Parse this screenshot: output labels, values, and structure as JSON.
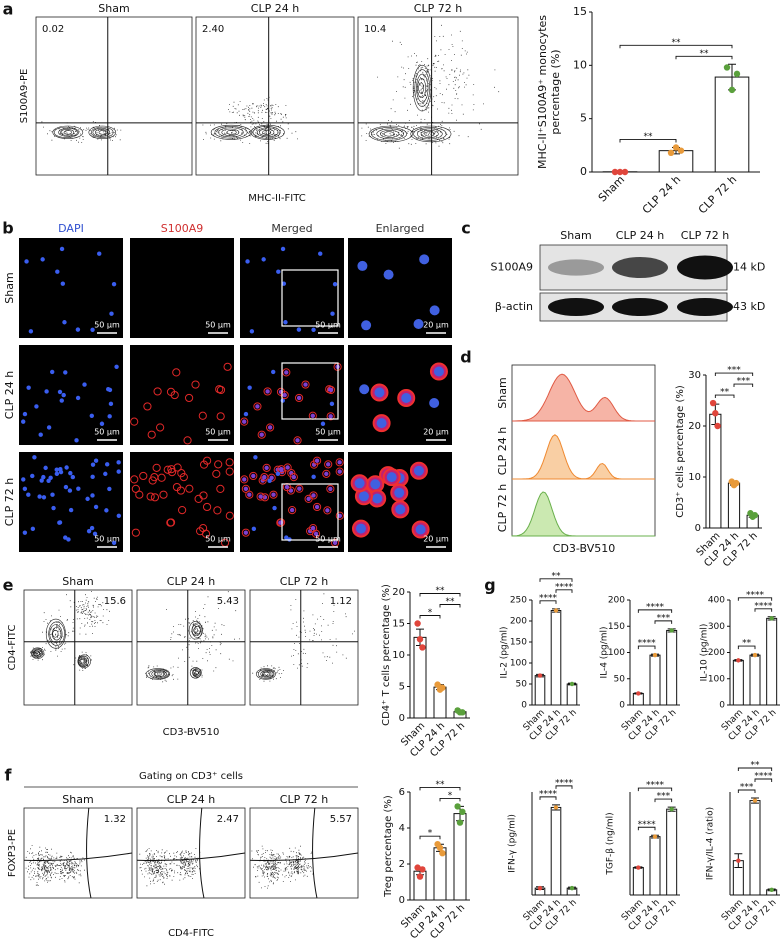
{
  "panels": [
    "a",
    "b",
    "c",
    "d",
    "e",
    "f",
    "g"
  ],
  "flow_a": {
    "ylabel": "S100A9-PE",
    "xlabel": "MHC-II-FITC",
    "plots": [
      {
        "title": "Sham",
        "percent": "0.02"
      },
      {
        "title": "CLP 24 h",
        "percent": "2.40"
      },
      {
        "title": "CLP 72 h",
        "percent": "10.4"
      }
    ]
  },
  "microscopy": {
    "columns": [
      "DAPI",
      "S100A9",
      "Merged",
      "Enlarged"
    ],
    "rows": [
      "Sham",
      "CLP 24 h",
      "CLP 72 h"
    ],
    "scale_bar": "50 μm",
    "scale_bar_enlarged": "20 μm"
  },
  "western": {
    "lanes": [
      "Sham",
      "CLP 24 h",
      "CLP 72 h"
    ],
    "bands": [
      {
        "label": "S100A9",
        "size": "14 kD"
      },
      {
        "label": "β-actin",
        "size": "43 kD"
      }
    ]
  },
  "histogram": {
    "rows": [
      "Sham",
      "CLP 24 h",
      "CLP 72 h"
    ],
    "xlabel": "CD3-BV510"
  },
  "flow_e": {
    "ylabel": "CD4-FITC",
    "xlabel": "CD3-BV510",
    "plots": [
      {
        "title": "Sham",
        "percent": "15.6"
      },
      {
        "title": "CLP 24 h",
        "percent": "5.43"
      },
      {
        "title": "CLP 72 h",
        "percent": "1.12"
      }
    ]
  },
  "flow_f": {
    "gating": "Gating on CD3⁺ cells",
    "ylabel": "FOXP3-PE",
    "xlabel": "CD4-FITC",
    "plots": [
      {
        "title": "Sham",
        "percent": "1.32"
      },
      {
        "title": "CLP 24 h",
        "percent": "2.47"
      },
      {
        "title": "CLP 72 h",
        "percent": "5.57"
      }
    ]
  },
  "chart_data": [
    {
      "type": "bar",
      "ylabel": [
        "MHC-II⁺S100A9⁺ monocytes",
        "percentage (%)"
      ],
      "categories": [
        "Sham",
        "CLP 24 h",
        "CLP 72 h"
      ],
      "values": [
        0.02,
        2.0,
        8.9
      ],
      "errors": [
        0.01,
        0.3,
        1.2
      ],
      "points": [
        [
          0,
          0,
          0
        ],
        [
          1.8,
          2.3,
          2.0
        ],
        [
          9.8,
          7.7,
          9.2
        ]
      ],
      "colors": [
        "#e0463c",
        "#e89a3a",
        "#5aa03c"
      ],
      "ylim": [
        0,
        15
      ],
      "yticks": [
        0,
        5,
        10,
        15
      ],
      "significance": [
        {
          "groups": [
            0,
            1
          ],
          "label": "**"
        },
        {
          "groups": [
            1,
            2
          ],
          "label": "**"
        },
        {
          "groups": [
            0,
            2
          ],
          "label": "**"
        }
      ]
    },
    {
      "type": "bar",
      "ylabel": "CD3⁺ cells percentage (%)",
      "categories": [
        "Sham",
        "CLP 24 h",
        "CLP 72 h"
      ],
      "values": [
        22.3,
        8.8,
        2.5
      ],
      "errors": [
        2.0,
        0.4,
        0.4
      ],
      "points": [
        [
          24.5,
          22.5,
          20
        ],
        [
          9.1,
          8.4,
          8.8
        ],
        [
          2.9,
          2.2,
          2.5
        ]
      ],
      "colors": [
        "#e0463c",
        "#e89a3a",
        "#5aa03c"
      ],
      "ylim": [
        0,
        30
      ],
      "yticks": [
        0,
        10,
        20,
        30
      ],
      "significance": [
        {
          "groups": [
            0,
            1
          ],
          "label": "**"
        },
        {
          "groups": [
            1,
            2
          ],
          "label": "***"
        },
        {
          "groups": [
            0,
            2
          ],
          "label": "***"
        }
      ]
    },
    {
      "type": "bar",
      "ylabel": "CD4⁺ T cells percentage (%)",
      "categories": [
        "Sham",
        "CLP 24 h",
        "CLP 72 h"
      ],
      "values": [
        12.8,
        4.9,
        1.0
      ],
      "errors": [
        1.3,
        0.4,
        0.1
      ],
      "points": [
        [
          15,
          12.5,
          11.2
        ],
        [
          5.3,
          4.5,
          4.8
        ],
        [
          1.2,
          0.9,
          0.9
        ]
      ],
      "colors": [
        "#e0463c",
        "#e89a3a",
        "#5aa03c"
      ],
      "ylim": [
        0,
        20
      ],
      "yticks": [
        0,
        5,
        10,
        15,
        20
      ],
      "significance": [
        {
          "groups": [
            0,
            1
          ],
          "label": "*"
        },
        {
          "groups": [
            1,
            2
          ],
          "label": "**"
        },
        {
          "groups": [
            0,
            2
          ],
          "label": "**"
        }
      ]
    },
    {
      "type": "bar",
      "ylabel": "Treg percentage (%)",
      "categories": [
        "Sham",
        "CLP 24 h",
        "CLP 72 h"
      ],
      "values": [
        1.6,
        2.9,
        4.8
      ],
      "errors": [
        0.2,
        0.2,
        0.4
      ],
      "points": [
        [
          1.8,
          1.3,
          1.7
        ],
        [
          3.1,
          2.9,
          2.6
        ],
        [
          5.2,
          4.3,
          4.9
        ]
      ],
      "colors": [
        "#e0463c",
        "#e89a3a",
        "#5aa03c"
      ],
      "ylim": [
        0,
        6
      ],
      "yticks": [
        0,
        2,
        4,
        6
      ],
      "significance": [
        {
          "groups": [
            0,
            1
          ],
          "label": "*"
        },
        {
          "groups": [
            1,
            2
          ],
          "label": "*"
        },
        {
          "groups": [
            0,
            2
          ],
          "label": "**"
        }
      ]
    },
    {
      "type": "bar",
      "ylabel": "IL-2 (pg/ml)",
      "categories": [
        "Sham",
        "CLP 24 h",
        "CLP 72 h"
      ],
      "values": [
        70,
        225,
        50
      ],
      "errors": [
        3,
        4,
        2
      ],
      "colors": [
        "#e0463c",
        "#e89a3a",
        "#5aa03c"
      ],
      "ylim": [
        0,
        250
      ],
      "yticks": [
        0,
        50,
        100,
        150,
        200,
        250
      ],
      "significance": [
        {
          "groups": [
            0,
            1
          ],
          "label": "****"
        },
        {
          "groups": [
            1,
            2
          ],
          "label": "****"
        },
        {
          "groups": [
            0,
            2
          ],
          "label": "**"
        }
      ]
    },
    {
      "type": "bar",
      "ylabel": "IL-4 (pg/ml)",
      "categories": [
        "Sham",
        "CLP 24 h",
        "CLP 72 h"
      ],
      "values": [
        22,
        95,
        142
      ],
      "errors": [
        1,
        2,
        3
      ],
      "colors": [
        "#e0463c",
        "#e89a3a",
        "#5aa03c"
      ],
      "ylim": [
        0,
        200
      ],
      "yticks": [
        0,
        50,
        100,
        150,
        200
      ],
      "significance": [
        {
          "groups": [
            0,
            1
          ],
          "label": "****"
        },
        {
          "groups": [
            1,
            2
          ],
          "label": "***"
        },
        {
          "groups": [
            0,
            2
          ],
          "label": "****"
        }
      ]
    },
    {
      "type": "bar",
      "ylabel": "IL-10 (pg/ml)",
      "categories": [
        "Sham",
        "CLP 24 h",
        "CLP 72 h"
      ],
      "values": [
        170,
        190,
        330
      ],
      "errors": [
        3,
        4,
        6
      ],
      "colors": [
        "#e0463c",
        "#e89a3a",
        "#5aa03c"
      ],
      "ylim": [
        0,
        400
      ],
      "yticks": [
        0,
        100,
        200,
        300,
        400
      ],
      "significance": [
        {
          "groups": [
            0,
            1
          ],
          "label": "**"
        },
        {
          "groups": [
            1,
            2
          ],
          "label": "****"
        },
        {
          "groups": [
            0,
            2
          ],
          "label": "****"
        }
      ]
    },
    {
      "type": "bar",
      "ylabel": "IFN-γ (pg/ml)",
      "categories": [
        "Sham",
        "CLP 24 h",
        "CLP 72 h"
      ],
      "values": [
        40,
        510,
        40
      ],
      "errors": [
        8,
        15,
        6
      ],
      "colors": [
        "#e0463c",
        "#e89a3a",
        "#5aa03c"
      ],
      "ylim": [
        0,
        600
      ],
      "significance": [
        {
          "groups": [
            0,
            1
          ],
          "label": "****"
        },
        {
          "groups": [
            1,
            2
          ],
          "label": "****"
        }
      ]
    },
    {
      "type": "bar",
      "ylabel": "TGF-β (ng/ml)",
      "categories": [
        "Sham",
        "CLP 24 h",
        "CLP 72 h"
      ],
      "values": [
        40,
        85,
        125
      ],
      "errors": [
        1,
        2,
        3
      ],
      "colors": [
        "#e0463c",
        "#e89a3a",
        "#5aa03c"
      ],
      "ylim": [
        0,
        150
      ],
      "significance": [
        {
          "groups": [
            0,
            1
          ],
          "label": "****"
        },
        {
          "groups": [
            1,
            2
          ],
          "label": "***"
        },
        {
          "groups": [
            0,
            2
          ],
          "label": "****"
        }
      ]
    },
    {
      "type": "bar",
      "ylabel": "IFN-γ/IL-4 (ratio)",
      "categories": [
        "Sham",
        "CLP 24 h",
        "CLP 72 h"
      ],
      "values": [
        2.0,
        5.5,
        0.3
      ],
      "errors": [
        0.4,
        0.15,
        0.05
      ],
      "colors": [
        "#e0463c",
        "#e89a3a",
        "#5aa03c"
      ],
      "ylim": [
        0,
        6
      ],
      "significance": [
        {
          "groups": [
            0,
            1
          ],
          "label": "***"
        },
        {
          "groups": [
            1,
            2
          ],
          "label": "****"
        },
        {
          "groups": [
            0,
            2
          ],
          "label": "**"
        }
      ]
    }
  ]
}
